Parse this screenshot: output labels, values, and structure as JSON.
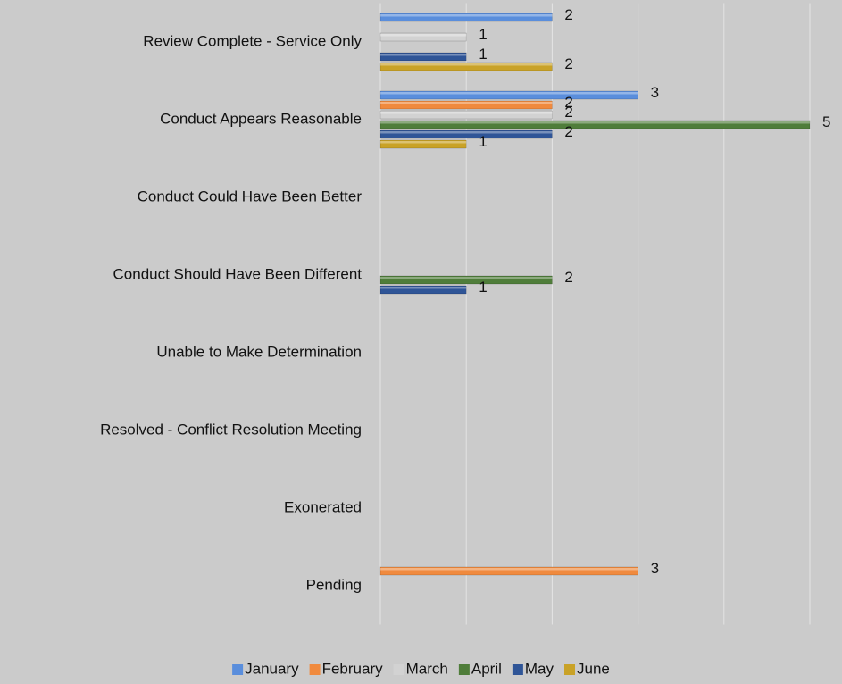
{
  "chart_data": {
    "type": "bar",
    "orientation": "horizontal",
    "categories": [
      "Review Complete - Service Only",
      "Conduct Appears Reasonable",
      "Conduct Could Have Been Better",
      "Conduct Should Have Been Different",
      "Unable to Make Determination",
      "Resolved - Conflict Resolution Meeting",
      "Exonerated",
      "Pending"
    ],
    "series": [
      {
        "name": "January",
        "color": "#5a8edc",
        "values": [
          2,
          3,
          null,
          null,
          null,
          null,
          null,
          null
        ]
      },
      {
        "name": "February",
        "color": "#f08a3e",
        "values": [
          null,
          2,
          null,
          null,
          null,
          null,
          null,
          3
        ]
      },
      {
        "name": "March",
        "color": "#d2d2d2",
        "values": [
          1,
          2,
          null,
          null,
          null,
          null,
          null,
          null
        ]
      },
      {
        "name": "April",
        "color": "#4f7d3a",
        "values": [
          null,
          5,
          null,
          2,
          null,
          null,
          null,
          null
        ]
      },
      {
        "name": "May",
        "color": "#2f5597",
        "values": [
          1,
          2,
          null,
          1,
          null,
          null,
          null,
          null
        ]
      },
      {
        "name": "June",
        "color": "#c9a227",
        "values": [
          2,
          1,
          null,
          null,
          null,
          null,
          null,
          null
        ]
      }
    ],
    "xlim": [
      0,
      5
    ],
    "xticks": [
      0,
      1,
      2,
      3,
      4,
      5
    ],
    "grid": true,
    "legend": "bottom"
  }
}
